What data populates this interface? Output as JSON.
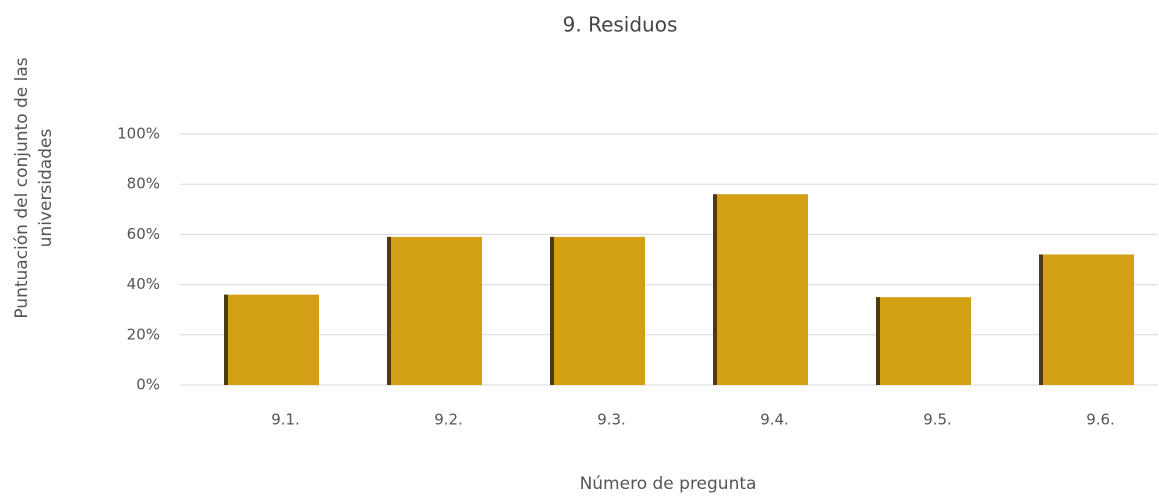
{
  "chart_data": {
    "type": "bar",
    "title": "9. Residuos",
    "x_label": "Número de pregunta",
    "y_label_lines": [
      "Puntuación del conjunto de las",
      "universidades"
    ],
    "categories": [
      "9.1.",
      "9.2.",
      "9.3.",
      "9.4.",
      "9.5.",
      "9.6."
    ],
    "values": [
      36,
      59,
      59,
      76,
      35,
      52
    ],
    "color": "#d3a015",
    "ylim": [
      0,
      100
    ],
    "yticks": [
      {
        "value": 0,
        "label": "0%"
      },
      {
        "value": 20,
        "label": "20%"
      },
      {
        "value": 40,
        "label": "40%"
      },
      {
        "value": 60,
        "label": "60%"
      },
      {
        "value": 80,
        "label": "80%"
      },
      {
        "value": 100,
        "label": "100%"
      }
    ],
    "grid": true
  }
}
